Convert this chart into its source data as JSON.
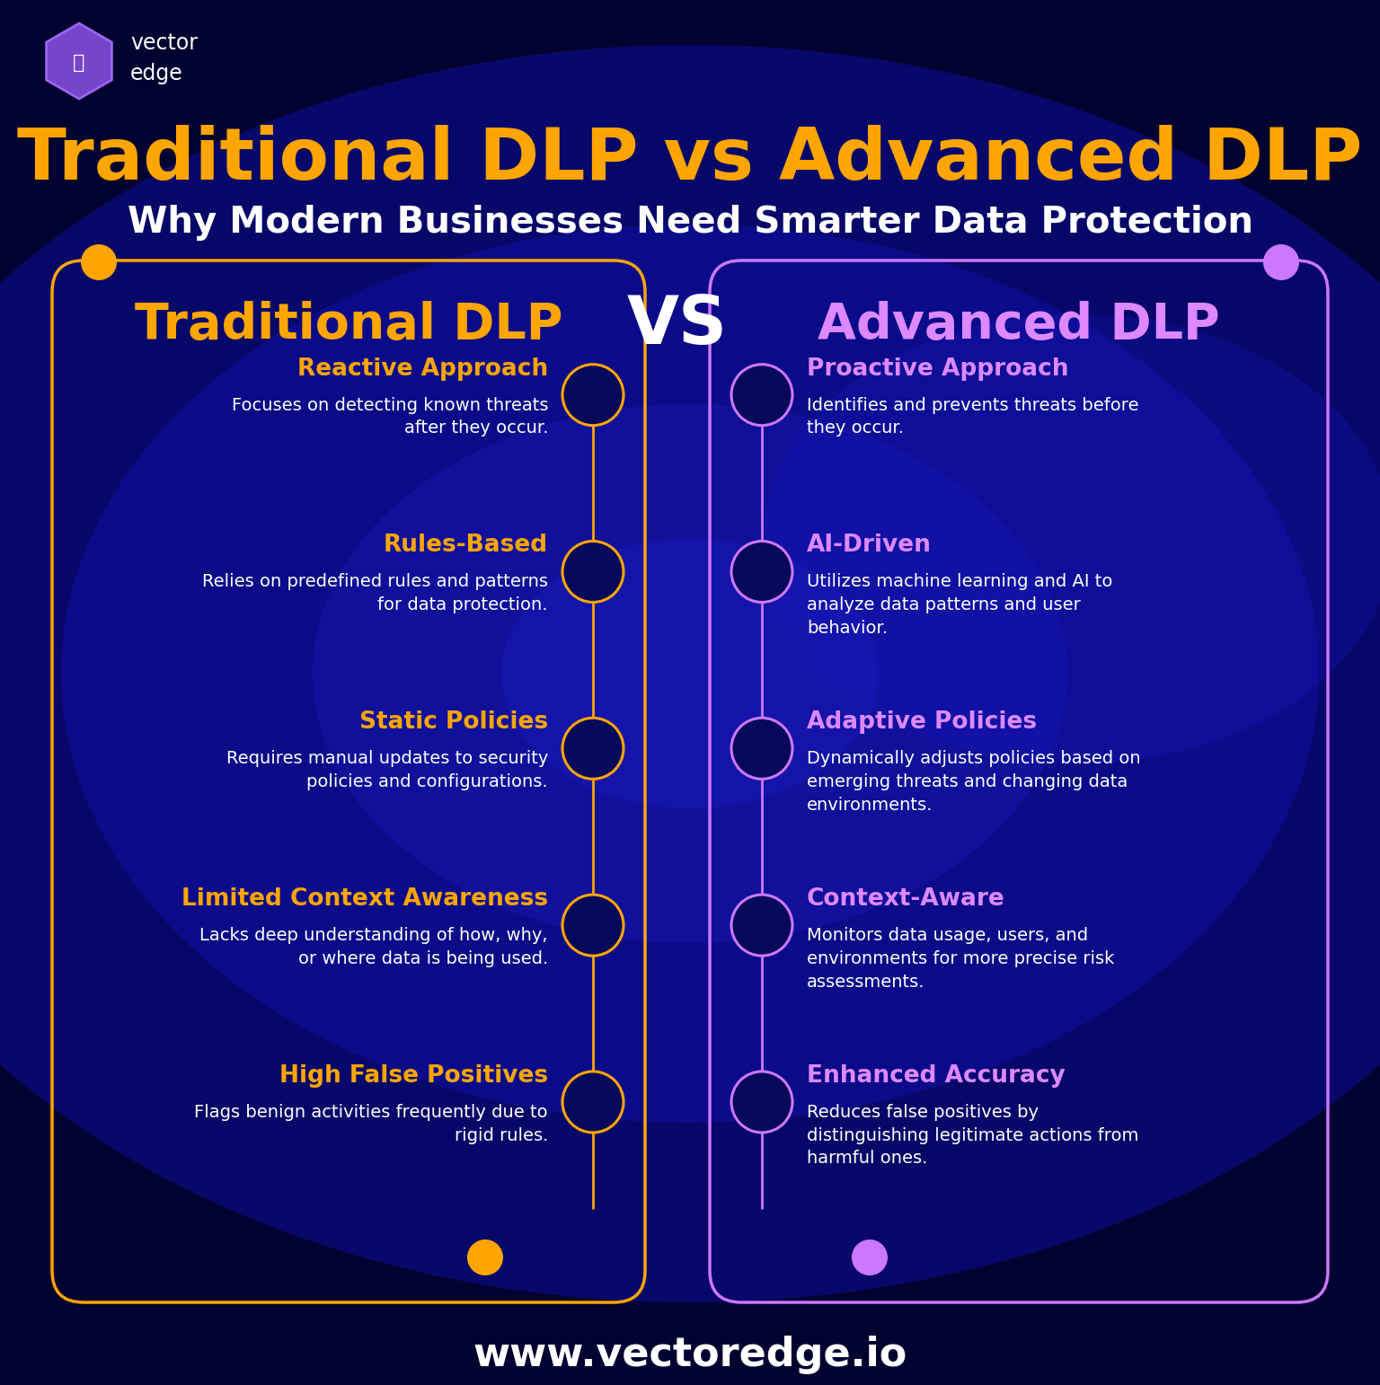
{
  "bg_dark": "#020230",
  "bg_mid": "#050580",
  "bg_light": "#0a0aaa",
  "title_line1": "Traditional DLP vs Advanced DLP",
  "title_line2": "Why Modern Businesses Need Smarter Data Protection",
  "title_color": "#FFA500",
  "subtitle_color": "#FFFFFF",
  "vs_text": "VS",
  "vs_color": "#FFFFFF",
  "left_header": "Traditional DLP",
  "right_header": "Advanced DLP",
  "left_header_color": "#FFA500",
  "right_header_color": "#DD88FF",
  "left_border_color": "#FFA500",
  "right_border_color": "#CC77FF",
  "left_items": [
    {
      "title": "Reactive Approach",
      "body": "Focuses on detecting known threats\nafter they occur."
    },
    {
      "title": "Rules-Based",
      "body": "Relies on predefined rules and patterns\nfor data protection."
    },
    {
      "title": "Static Policies",
      "body": "Requires manual updates to security\npolicies and configurations."
    },
    {
      "title": "Limited Context Awareness",
      "body": "Lacks deep understanding of how, why,\nor where data is being used."
    },
    {
      "title": "High False Positives",
      "body": "Flags benign activities frequently due to\nrigid rules."
    }
  ],
  "right_items": [
    {
      "title": "Proactive Approach",
      "body": "Identifies and prevents threats before\nthey occur."
    },
    {
      "title": "AI-Driven",
      "body": "Utilizes machine learning and AI to\nanalyze data patterns and user\nbehavior."
    },
    {
      "title": "Adaptive Policies",
      "body": "Dynamically adjusts policies based on\nemerging threats and changing data\nenvironments."
    },
    {
      "title": "Context-Aware",
      "body": "Monitors data usage, users, and\nenvironments for more precise risk\nassessments."
    },
    {
      "title": "Enhanced Accuracy",
      "body": "Reduces false positives by\ndistinguishing legitimate actions from\nharmful ones."
    }
  ],
  "footer_text": "www.vectoredge.io",
  "footer_color": "#FFFFFF",
  "item_title_color_left": "#FFA500",
  "item_title_color_right": "#DD88FF",
  "item_body_color": "#FFFFFF",
  "logo_text1": "vector",
  "logo_text2": "edge"
}
